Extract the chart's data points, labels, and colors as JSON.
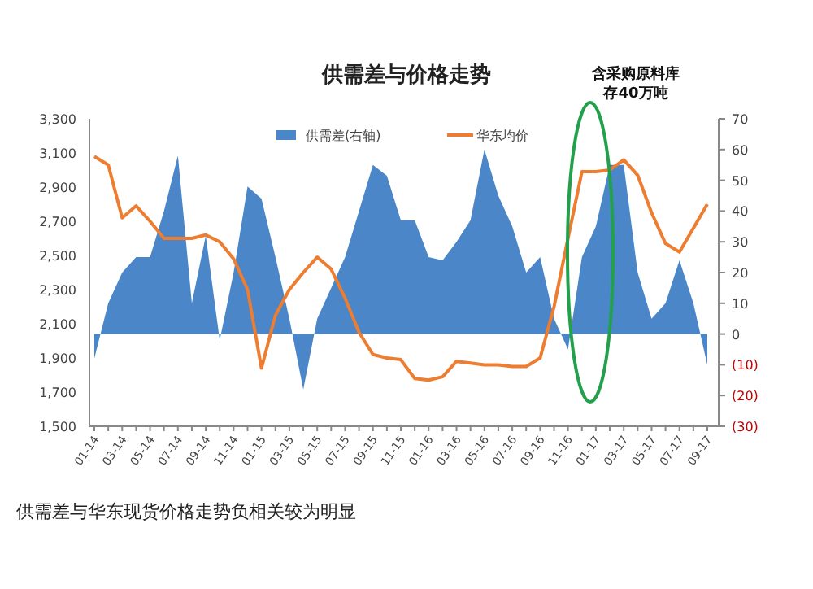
{
  "chart_data": {
    "type": "line",
    "title": "供需差与价格走势",
    "categories": [
      "01-14",
      null,
      "03-14",
      null,
      "05-14",
      null,
      "07-14",
      null,
      "09-14",
      null,
      "11-14",
      null,
      "01-15",
      null,
      "03-15",
      null,
      "05-15",
      null,
      "07-15",
      null,
      "09-15",
      null,
      "11-15",
      null,
      "01-16",
      null,
      "03-16",
      null,
      "05-16",
      null,
      "07-16",
      null,
      "09-16",
      null,
      "11-16",
      null,
      "01-17",
      null,
      "03-17",
      null,
      "05-17",
      null,
      "07-17",
      null,
      "09-17"
    ],
    "series": [
      {
        "name": "供需差(右轴)",
        "type": "area",
        "axis": "y2",
        "color": "#4a86c8",
        "values": [
          -8,
          10,
          20,
          25,
          25,
          40,
          58,
          10,
          32,
          -2,
          20,
          48,
          44,
          25,
          5,
          -18,
          5,
          15,
          25,
          40,
          55,
          51.5,
          37,
          37,
          25,
          24,
          30,
          37,
          60,
          45,
          35,
          20,
          25,
          5,
          -5,
          25,
          35,
          55,
          55,
          20,
          5,
          10,
          24,
          10,
          -10
        ]
      },
      {
        "name": "华东均价",
        "color": "#ed7d31",
        "values": [
          3080,
          3030,
          2720,
          2790,
          2700,
          2600,
          2600,
          2600,
          2620,
          2580,
          2480,
          2300,
          1840,
          2150,
          2300,
          2400,
          2490,
          2420,
          2250,
          2050,
          1920,
          1900,
          1890,
          1780,
          1770,
          1790,
          1880,
          1870,
          1860,
          1860,
          1850,
          1850,
          1900,
          2200,
          2600,
          2990,
          2990,
          3000,
          3060,
          2970,
          2750,
          2570,
          2520,
          2660,
          2800
        ]
      }
    ],
    "ylim": [
      1500,
      3300
    ],
    "yticks": [
      {
        "value": 1500,
        "label": "1,500"
      },
      {
        "value": 1700,
        "label": "1,700"
      },
      {
        "value": 1900,
        "label": "1,900"
      },
      {
        "value": 2100,
        "label": "2,100"
      },
      {
        "value": 2300,
        "label": "2,300"
      },
      {
        "value": 2500,
        "label": "2,500"
      },
      {
        "value": 2700,
        "label": "2,700"
      },
      {
        "value": 2900,
        "label": "2,900"
      },
      {
        "value": 3100,
        "label": "3,100"
      },
      {
        "value": 3300,
        "label": "3,300"
      }
    ],
    "y2lim": [
      -30,
      70
    ],
    "y2ticks": [
      {
        "value": -30,
        "label": "(30)"
      },
      {
        "value": -20,
        "label": "(20)"
      },
      {
        "value": -10,
        "label": "(10)"
      },
      0,
      10,
      20,
      30,
      40,
      50,
      60,
      70
    ],
    "legend": "top",
    "grid": false,
    "annotations": [
      "含采购原料库存40万吨",
      "供需差与华东现货价格走势负相关较为明显"
    ]
  }
}
